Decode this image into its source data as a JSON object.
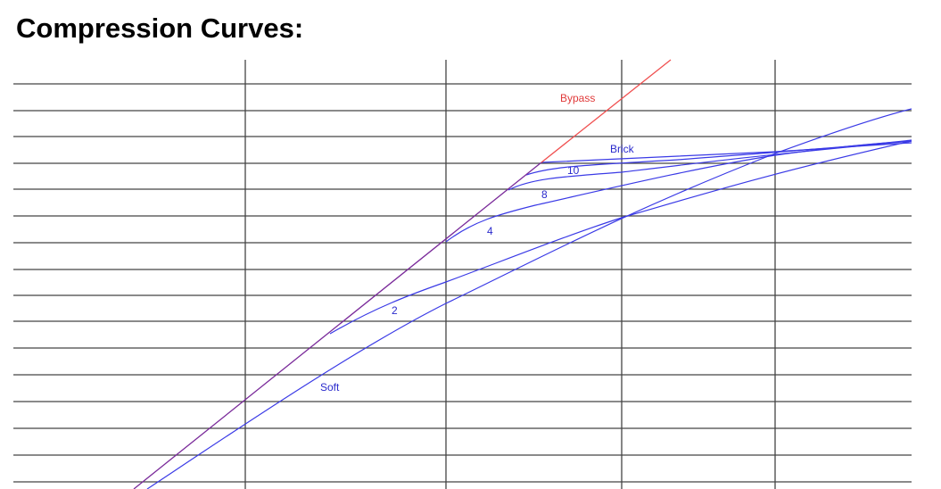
{
  "header": {
    "title": "Compression Curves:"
  },
  "curves": {
    "bypass": "Bypass",
    "brick": "Brick",
    "ratio10": "10",
    "ratio8": "8",
    "ratio4": "4",
    "ratio2": "2",
    "soft": "Soft"
  }
}
